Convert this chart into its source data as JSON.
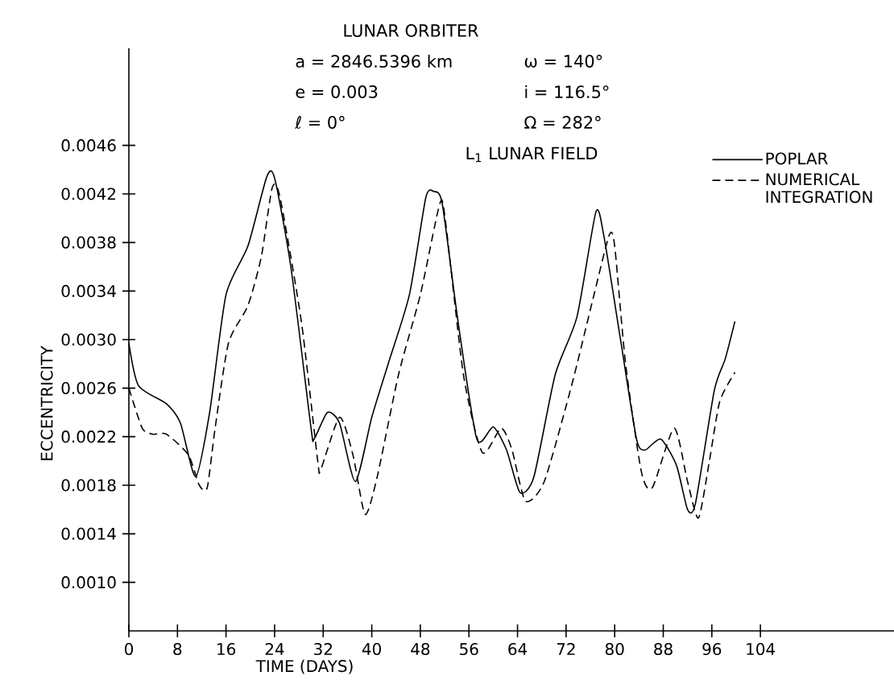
{
  "chart_data": {
    "type": "line",
    "title": "LUNAR ORBITER",
    "annotations": [
      "a = 2846.5396 km",
      "ω = 140°",
      "e = 0.003",
      "i = 116.5°",
      "ℓ = 0°",
      "Ω = 282°",
      "L$_{1}$ LUNAR FIELD"
    ],
    "xlabel": "TIME (DAYS)",
    "ylabel": "ECCENTRICITY",
    "xlim": [
      0,
      126
    ],
    "xticks": [
      0,
      8,
      16,
      24,
      32,
      40,
      48,
      56,
      64,
      72,
      80,
      88,
      96,
      104
    ],
    "ylim": [
      0.0006,
      0.0054
    ],
    "yticks": [
      {
        "value": 0.001,
        "label": "0.0010"
      },
      {
        "value": 0.0014,
        "label": "0.0014"
      },
      {
        "value": 0.0018,
        "label": "0.0018"
      },
      {
        "value": 0.0022,
        "label": "0.0022"
      },
      {
        "value": 0.0026,
        "label": "0.0026"
      },
      {
        "value": 0.003,
        "label": "0.0030"
      },
      {
        "value": 0.0034,
        "label": "0.0034"
      },
      {
        "value": 0.0038,
        "label": "0.0038"
      },
      {
        "value": 0.0042,
        "label": "0.0042"
      },
      {
        "value": 0.0046,
        "label": "0.0046"
      }
    ],
    "legend": "top right",
    "grid": false,
    "marker": "none",
    "series": [
      {
        "name": "POPLAR",
        "color": "#000000",
        "line_style": "solid",
        "x": [
          0,
          1.6,
          6.2,
          8.5,
          11,
          13.3,
          16,
          19.6,
          22.7,
          24,
          26.7,
          30,
          30.5,
          32.7,
          34.7,
          37.3,
          40,
          42.7,
          46.2,
          48.9,
          50.2,
          51.6,
          54.2,
          57.3,
          60,
          62.2,
          64.4,
          66.7,
          70.2,
          73.8,
          76.9,
          78.2,
          80.9,
          83.6,
          85,
          87.6,
          90.2,
          92,
          93.3,
          96.4,
          98.2,
          99.8
        ],
        "values": [
          0.00297,
          0.00262,
          0.00247,
          0.00231,
          0.00187,
          0.0024,
          0.00337,
          0.00377,
          0.00434,
          0.00433,
          0.00359,
          0.00227,
          0.00218,
          0.0024,
          0.00231,
          0.00183,
          0.00236,
          0.0028,
          0.00337,
          0.00417,
          0.00422,
          0.00412,
          0.00315,
          0.00218,
          0.00228,
          0.00209,
          0.00174,
          0.00187,
          0.00271,
          0.00319,
          0.00405,
          0.00386,
          0.00302,
          0.00218,
          0.00209,
          0.00218,
          0.00196,
          0.0016,
          0.00165,
          0.00258,
          0.00284,
          0.00315
        ]
      },
      {
        "name": "NUMERICAL INTEGRATION",
        "color": "#000000",
        "line_style": "dashed",
        "x": [
          0,
          2.2,
          4,
          6.2,
          9.8,
          11.6,
          12.9,
          14.2,
          16.4,
          19.6,
          21.8,
          23.6,
          24.9,
          28.4,
          31.1,
          31.6,
          34.7,
          36.9,
          38.9,
          40.9,
          44.4,
          48,
          51.1,
          52,
          55.1,
          58.2,
          61.3,
          63.1,
          65.3,
          68.4,
          72.9,
          76.4,
          79.1,
          80,
          81.8,
          84.4,
          86.2,
          89.8,
          92,
          93.8,
          95.6,
          97.3,
          99.8
        ],
        "values": [
          0.0026,
          0.00227,
          0.00222,
          0.00222,
          0.00205,
          0.0018,
          0.00178,
          0.00227,
          0.00297,
          0.00328,
          0.00368,
          0.00425,
          0.00417,
          0.00315,
          0.002,
          0.00193,
          0.00236,
          0.00205,
          0.00156,
          0.00187,
          0.00271,
          0.00337,
          0.0041,
          0.00403,
          0.00271,
          0.00207,
          0.00227,
          0.00209,
          0.00167,
          0.00183,
          0.00262,
          0.00333,
          0.00386,
          0.00377,
          0.0028,
          0.00191,
          0.00178,
          0.00227,
          0.00183,
          0.00153,
          0.002,
          0.00249,
          0.00273
        ]
      }
    ]
  }
}
